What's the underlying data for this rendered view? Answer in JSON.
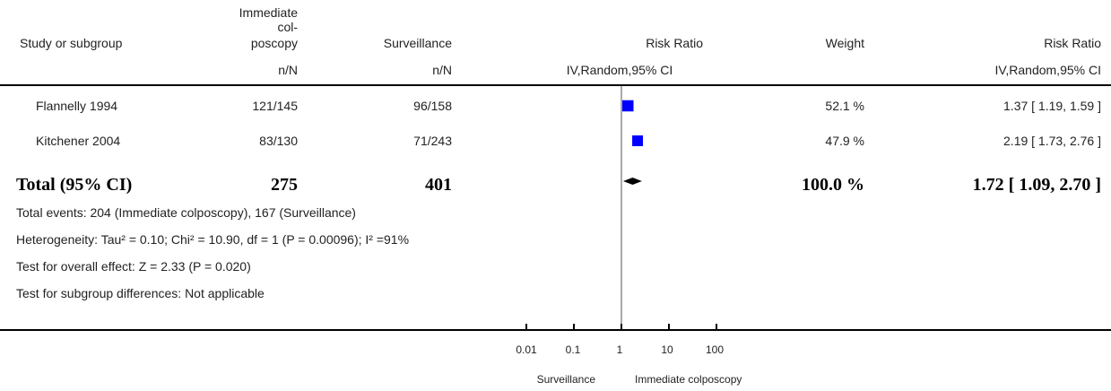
{
  "header": {
    "study": "Study or subgroup",
    "exp_line1": "Immediate",
    "exp_line2": "col-",
    "exp_line3": "poscopy",
    "exp_unit": "n/N",
    "ctrl": "Surveillance",
    "ctrl_unit": "n/N",
    "plot_title": "Risk Ratio",
    "plot_method": "IV,Random,95% CI",
    "weight": "Weight",
    "effect_title": "Risk Ratio",
    "effect_method": "IV,Random,95% CI"
  },
  "studies": [
    {
      "name": "Flannelly 1994",
      "exp": "121/145",
      "ctrl": "96/158",
      "weight": "52.1 %",
      "ci": "1.37 [ 1.19, 1.59 ]"
    },
    {
      "name": "Kitchener 2004",
      "exp": "83/130",
      "ctrl": "71/243",
      "weight": "47.9 %",
      "ci": "2.19 [ 1.73, 2.76 ]"
    }
  ],
  "total": {
    "label": "Total (95% CI)",
    "exp": "275",
    "ctrl": "401",
    "weight": "100.0 %",
    "ci": "1.72 [ 1.09, 2.70 ]"
  },
  "notes": {
    "events": "Total events: 204 (Immediate colposcopy), 167 (Surveillance)",
    "heterogeneity": "Heterogeneity: Tau² = 0.10; Chi² = 10.90, df = 1 (P = 0.00096); I² =91%",
    "overall": "Test for overall effect: Z = 2.33 (P = 0.020)",
    "subgroup": "Test for subgroup differences: Not applicable"
  },
  "axis": {
    "ticks": [
      "0.01",
      "0.1",
      "1",
      "10",
      "100"
    ],
    "left_label": "Surveillance",
    "right_label": "Immediate colposcopy"
  },
  "colors": {
    "marker": "#0000ff",
    "line": "#000000"
  },
  "chart_data": {
    "type": "forest",
    "scale": "log",
    "xlim": [
      0.01,
      100
    ],
    "null_value": 1,
    "studies": [
      {
        "name": "Flannelly 1994",
        "rr": 1.37,
        "lower": 1.19,
        "upper": 1.59,
        "weight": 52.1
      },
      {
        "name": "Kitchener 2004",
        "rr": 2.19,
        "lower": 1.73,
        "upper": 2.76,
        "weight": 47.9
      }
    ],
    "pooled": {
      "name": "Total (95% CI)",
      "rr": 1.72,
      "lower": 1.09,
      "upper": 2.7
    }
  }
}
